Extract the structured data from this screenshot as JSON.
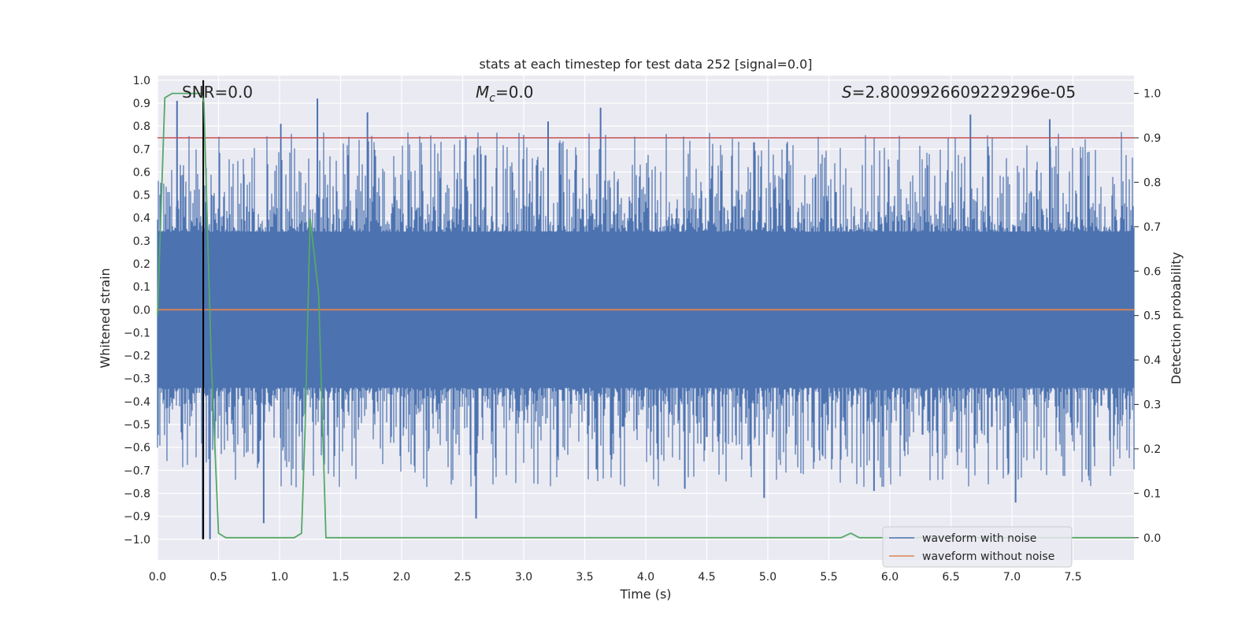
{
  "chart_data": {
    "type": "line",
    "title": "stats at each timestep for test data 252 [signal=0.0]",
    "xlabel": "Time (s)",
    "ylabel": "Whitened strain",
    "y2label": "Detection probability",
    "xlim": [
      0.0,
      8.0
    ],
    "ylim": [
      -1.09,
      1.02
    ],
    "y2lim": [
      -0.05,
      1.04
    ],
    "xticks": [
      0.0,
      0.5,
      1.0,
      1.5,
      2.0,
      2.5,
      3.0,
      3.5,
      4.0,
      4.5,
      5.0,
      5.5,
      6.0,
      6.5,
      7.0,
      7.5
    ],
    "xtick_labels": [
      "0.0",
      "0.5",
      "1.0",
      "1.5",
      "2.0",
      "2.5",
      "3.0",
      "3.5",
      "4.0",
      "4.5",
      "5.0",
      "5.5",
      "6.0",
      "6.5",
      "7.0",
      "7.5"
    ],
    "yticks": [
      1.0,
      0.9,
      0.8,
      0.7,
      0.6,
      0.5,
      0.4,
      0.3,
      0.2,
      0.1,
      0.0,
      -0.1,
      -0.2,
      -0.3,
      -0.4,
      -0.5,
      -0.6,
      -0.7,
      -0.8,
      -0.9,
      -1.0
    ],
    "ytick_labels": [
      "1.0",
      "0.9",
      "0.8",
      "0.7",
      "0.6",
      "0.5",
      "0.4",
      "0.3",
      "0.2",
      "0.1",
      "0.0",
      "−0.1",
      "−0.2",
      "−0.3",
      "−0.4",
      "−0.5",
      "−0.6",
      "−0.7",
      "−0.8",
      "−0.9",
      "−1.0"
    ],
    "y2ticks": [
      1.0,
      0.9,
      0.8,
      0.7,
      0.6,
      0.5,
      0.4,
      0.3,
      0.2,
      0.1,
      0.0
    ],
    "y2tick_labels": [
      "1.0",
      "0.9",
      "0.8",
      "0.7",
      "0.6",
      "0.5",
      "0.4",
      "0.3",
      "0.2",
      "0.1",
      "0.0"
    ],
    "annotations": {
      "snr": "SNR=0.0",
      "mc_symbol": "M",
      "mc_sub": "c",
      "mc_value": "=0.0",
      "s_symbol": "S",
      "s_value": "=2.8009926609229296e-05"
    },
    "legend": {
      "placement": "lower-right",
      "entries": [
        {
          "label": "waveform with noise",
          "color": "#4c72b0"
        },
        {
          "label": "waveform without noise",
          "color": "#dd8452"
        }
      ]
    },
    "threshold_line": {
      "axis": "y2",
      "value": 0.9,
      "color": "#c44e52"
    },
    "marker_line": {
      "x": 0.375,
      "y_from": -1.0,
      "y_to": 1.0,
      "color": "#000000"
    },
    "noise_envelope": {
      "core_amplitude": 0.34,
      "peak_amplitude": 0.92,
      "color": "#4c72b0"
    },
    "series": [
      {
        "name": "waveform with noise",
        "axis": "y",
        "color": "#4c72b0",
        "style": "dense-noise",
        "peaks": [
          {
            "x": 0.16,
            "y": 0.91
          },
          {
            "x": 0.37,
            "y": -1.0
          },
          {
            "x": 0.43,
            "y": -1.0
          },
          {
            "x": 0.87,
            "y": -0.93
          },
          {
            "x": 1.01,
            "y": 0.81
          },
          {
            "x": 1.31,
            "y": 0.92
          },
          {
            "x": 1.72,
            "y": 0.86
          },
          {
            "x": 2.61,
            "y": -0.91
          },
          {
            "x": 3.2,
            "y": 0.82
          },
          {
            "x": 3.63,
            "y": 0.88
          },
          {
            "x": 4.32,
            "y": -0.78
          },
          {
            "x": 4.97,
            "y": -0.82
          },
          {
            "x": 5.87,
            "y": -0.79
          },
          {
            "x": 6.66,
            "y": 0.85
          },
          {
            "x": 7.03,
            "y": -0.84
          },
          {
            "x": 7.31,
            "y": 0.83
          }
        ]
      },
      {
        "name": "waveform without noise",
        "axis": "y",
        "color": "#dd8452",
        "x": [
          0.0,
          8.0
        ],
        "y": [
          0.0,
          0.0
        ]
      },
      {
        "name": "detection probability",
        "axis": "y2",
        "color": "#55a868",
        "x": [
          0.0,
          0.06,
          0.12,
          0.2,
          0.3,
          0.36,
          0.38,
          0.44,
          0.5,
          0.56,
          0.62,
          1.12,
          1.18,
          1.21,
          1.25,
          1.32,
          1.38,
          1.45,
          5.6,
          5.68,
          5.75,
          8.0
        ],
        "y": [
          0.5,
          0.99,
          1.0,
          1.0,
          1.0,
          1.0,
          0.98,
          0.4,
          0.01,
          0.0,
          0.0,
          0.0,
          0.01,
          0.25,
          0.72,
          0.55,
          0.0,
          0.0,
          0.0,
          0.01,
          0.0,
          0.0
        ]
      }
    ]
  }
}
